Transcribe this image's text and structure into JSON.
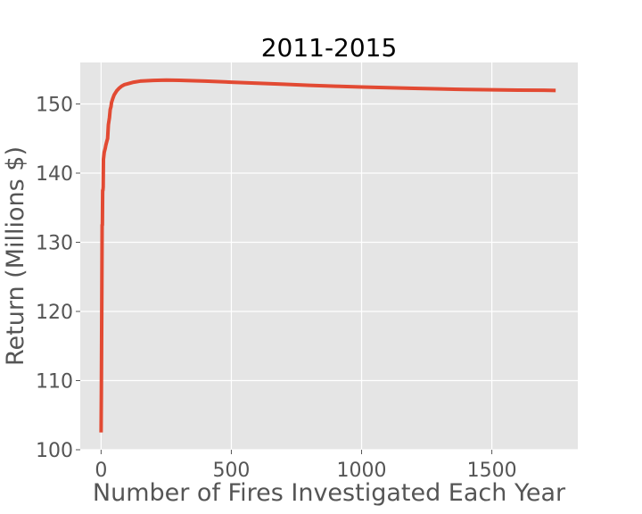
{
  "chart_data": {
    "type": "line",
    "title": "2011-2015",
    "xlabel": "Number of Fires Investigated Each Year",
    "ylabel": "Return (Millions $)",
    "xlim": [
      -80,
      1830
    ],
    "ylim": [
      100,
      156
    ],
    "xticks": [
      0,
      500,
      1000,
      1500
    ],
    "yticks": [
      100,
      110,
      120,
      130,
      140,
      150
    ],
    "grid": true,
    "legend": "none",
    "colors": {
      "line": "#E24A33",
      "plot_background": "#E5E5E5",
      "grid": "#FFFFFF",
      "tick_text": "#555555",
      "title_text": "#000000"
    },
    "series": [
      {
        "x": [
          0,
          1,
          2,
          3,
          4,
          5,
          6,
          7,
          8,
          9,
          10,
          12,
          14,
          16,
          18,
          20,
          22,
          25,
          28,
          30,
          32,
          35,
          38,
          40,
          45,
          50,
          55,
          60,
          70,
          80,
          90,
          100,
          125,
          150,
          200,
          250,
          300,
          400,
          500,
          600,
          700,
          800,
          900,
          1000,
          1100,
          1200,
          1300,
          1400,
          1500,
          1600,
          1700,
          1745
        ],
        "y": [
          102.5,
          108,
          116,
          124,
          132.5,
          132.5,
          137.5,
          137.5,
          138,
          142,
          142.3,
          143,
          143.3,
          143.6,
          144,
          144.3,
          144.6,
          145,
          147,
          147.5,
          148,
          149.2,
          149.6,
          150.2,
          150.8,
          151.3,
          151.6,
          151.9,
          152.3,
          152.6,
          152.8,
          152.9,
          153.15,
          153.3,
          153.4,
          153.45,
          153.42,
          153.3,
          153.15,
          153.0,
          152.85,
          152.7,
          152.57,
          152.45,
          152.35,
          152.25,
          152.17,
          152.1,
          152.05,
          152.0,
          151.98,
          151.95
        ]
      }
    ]
  }
}
